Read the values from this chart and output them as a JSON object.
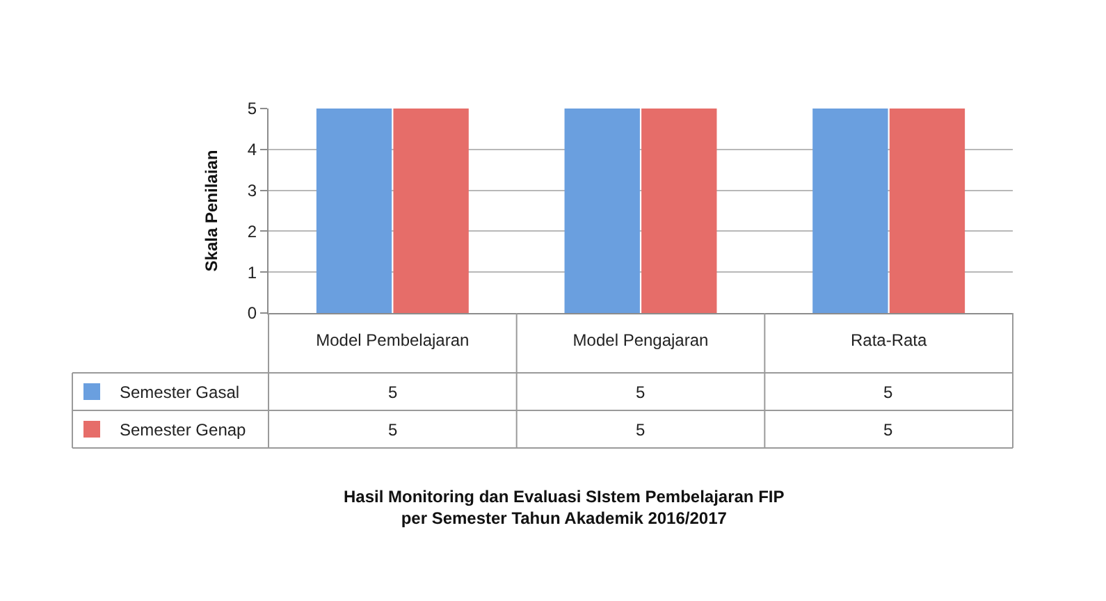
{
  "chart_data": {
    "type": "bar",
    "ylabel": "Skala Penilaian",
    "annotations": [
      "Hasil Monitoring dan Evaluasi SIstem Pembelajaran FIP per Semester Tahun Akademik 2016/2017"
    ],
    "categories": [
      "Model Pembelajaran",
      "Model Pengajaran",
      "Rata-Rata"
    ],
    "series": [
      {
        "name": "Semester Gasal",
        "color": "#6a9fdf",
        "values": [
          5,
          5,
          5
        ]
      },
      {
        "name": "Semester Genap",
        "color": "#e66d69",
        "values": [
          5,
          5,
          5
        ]
      }
    ],
    "ylim": [
      0,
      5
    ],
    "yticks": [
      0,
      1,
      2,
      3,
      4,
      5
    ],
    "grid": "y",
    "legend": "bottom left",
    "data_labels": true
  }
}
